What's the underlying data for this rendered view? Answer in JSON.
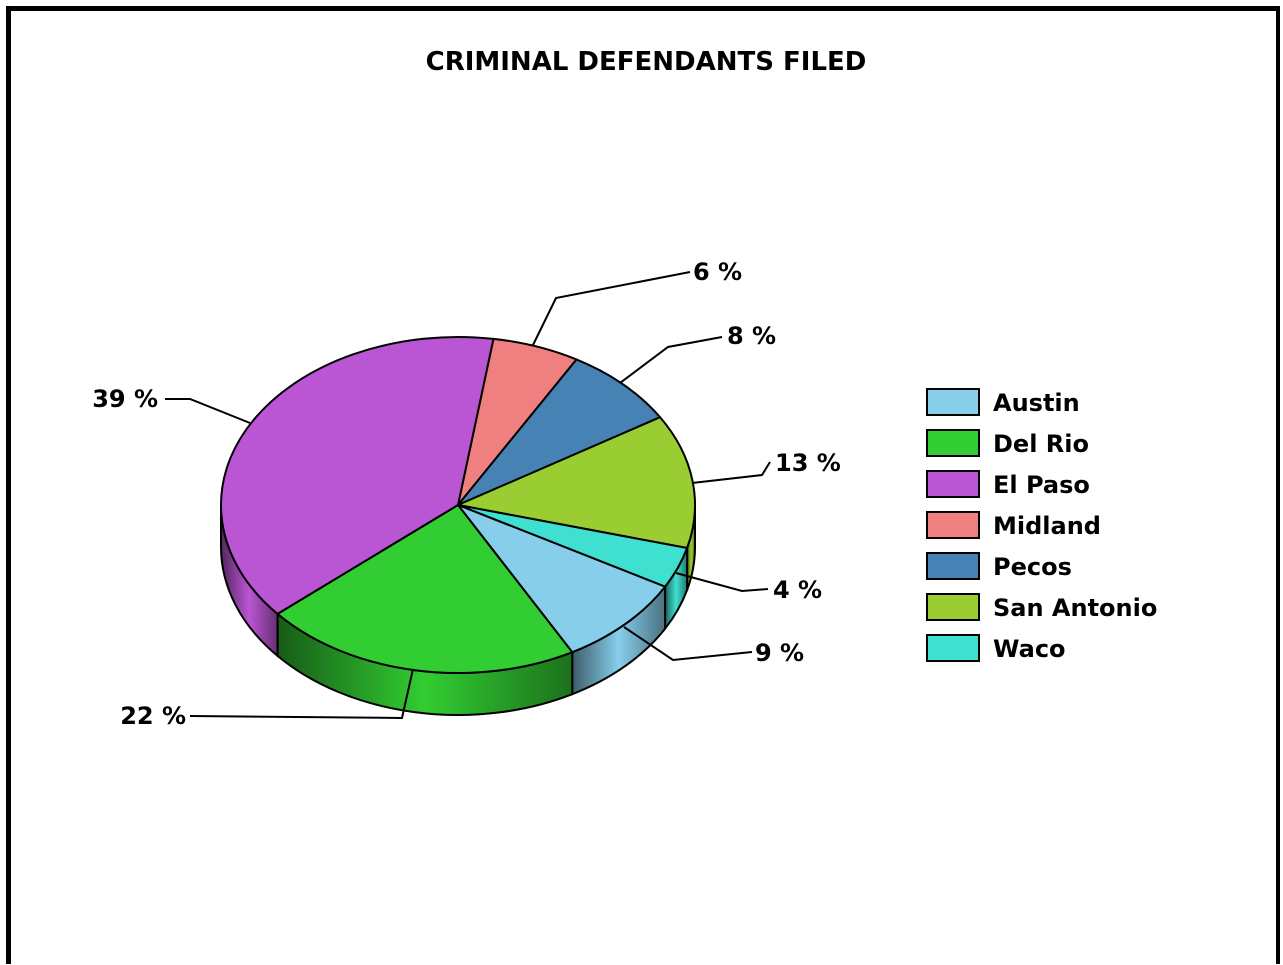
{
  "chart_data": {
    "type": "pie",
    "title": "CRIMINAL DEFENDANTS FILED",
    "categories": [
      "Austin",
      "Del Rio",
      "El Paso",
      "Midland",
      "Pecos",
      "San Antonio",
      "Waco"
    ],
    "values": [
      9,
      22,
      39,
      6,
      8,
      13,
      4
    ],
    "data_labels": [
      "9 %",
      "22 %",
      "39 %",
      "6 %",
      "8 %",
      "13 %",
      "4 %"
    ],
    "colors": [
      "#87ceeb",
      "#32cd32",
      "#ba55d3",
      "#f08080",
      "#4682b4",
      "#9acd32",
      "#40e0d0"
    ],
    "legend_position": "right",
    "style": "3d"
  }
}
